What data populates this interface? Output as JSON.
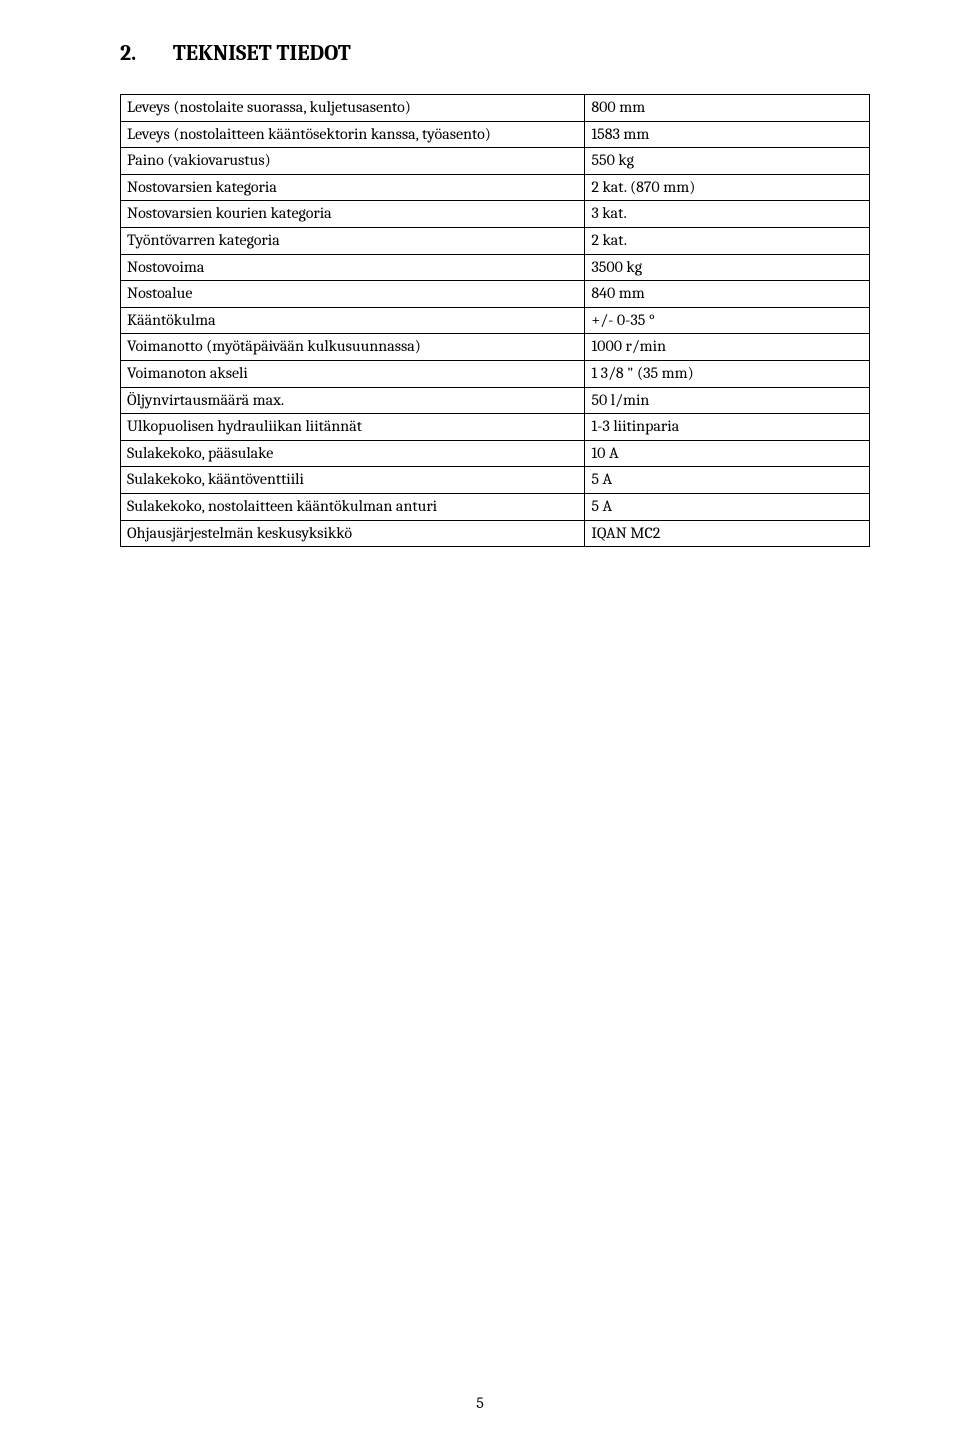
{
  "heading": {
    "number": "2.",
    "title": "TEKNISET TIEDOT"
  },
  "rows": [
    {
      "label": "Leveys (nostolaite suorassa, kuljetusasento)",
      "value": "800 mm"
    },
    {
      "label": "Leveys (nostolaitteen kääntösektorin kanssa, työasento)",
      "value": "1583 mm"
    },
    {
      "label": "Paino (vakiovarustus)",
      "value": "550 kg"
    },
    {
      "label": "Nostovarsien kategoria",
      "value": "2 kat. (870 mm)"
    },
    {
      "label": "Nostovarsien kourien kategoria",
      "value": "3 kat."
    },
    {
      "label": "Työntövarren kategoria",
      "value": "2 kat."
    },
    {
      "label": "Nostovoima",
      "value": "3500 kg"
    },
    {
      "label": "Nostoalue",
      "value": "840 mm"
    },
    {
      "label": "Kääntökulma",
      "value": "+/- 0-35 °"
    },
    {
      "label": "Voimanotto (myötäpäivään kulkusuunnassa)",
      "value": "1000 r/min"
    },
    {
      "label": "Voimanoton akseli",
      "value": "1 3/8 \" (35 mm)"
    },
    {
      "label": "Öljynvirtausmäärä max.",
      "value": "50 l/min"
    },
    {
      "label": "Ulkopuolisen hydrauliikan liitännät",
      "value": "1-3 liitinparia"
    },
    {
      "label": "Sulakekoko, pääsulake",
      "value": "10 A"
    },
    {
      "label": "Sulakekoko, kääntöventtiili",
      "value": "5 A"
    },
    {
      "label": "Sulakekoko, nostolaitteen kääntökulman anturi",
      "value": "5 A"
    },
    {
      "label": "Ohjausjärjestelmän keskusyksikkö",
      "value": "IQAN MC2"
    }
  ],
  "pageNumber": "5"
}
